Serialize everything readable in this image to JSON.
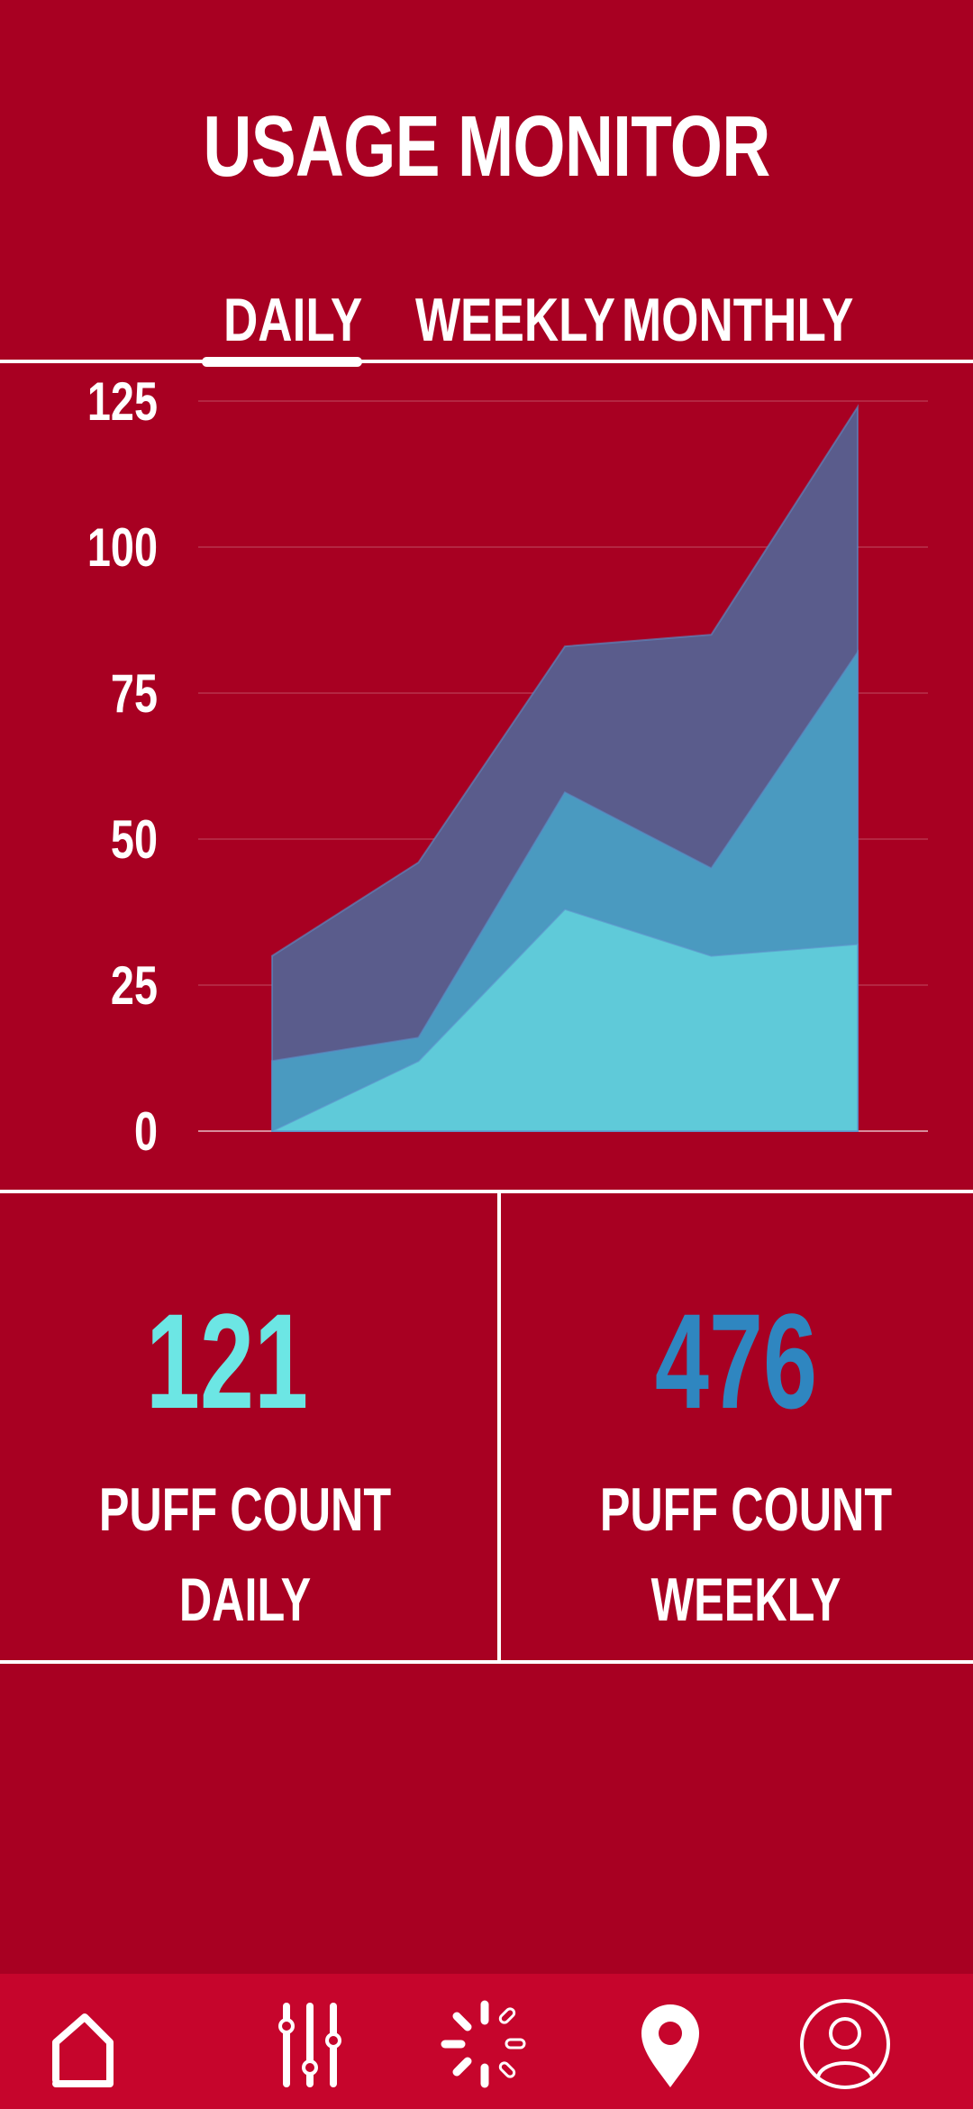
{
  "header": {
    "title": "USAGE MONITOR"
  },
  "tabs": [
    {
      "label": "DAILY",
      "active": true
    },
    {
      "label": "WEEKLY",
      "active": false
    },
    {
      "label": "MONTHLY",
      "active": false
    }
  ],
  "chart_data": {
    "type": "area",
    "stacked": false,
    "x": [
      1,
      2,
      3,
      4,
      5
    ],
    "ylim": [
      0,
      125
    ],
    "yticks": [
      0,
      25,
      50,
      75,
      100,
      125
    ],
    "grid": true,
    "legend": "none",
    "series": [
      {
        "color": "#5A5C8C",
        "values": [
          30,
          46,
          83,
          85,
          124
        ]
      },
      {
        "color": "#4A9AC0",
        "values": [
          12,
          16,
          58,
          45,
          82
        ]
      },
      {
        "color": "#5FCAD9",
        "values": [
          0,
          12,
          38,
          30,
          32
        ]
      }
    ]
  },
  "stats": [
    {
      "value": "121",
      "line1": "PUFF COUNT",
      "line2": "DAILY",
      "color": "#6CE6E4"
    },
    {
      "value": "476",
      "line1": "PUFF COUNT",
      "line2": "WEEKLY",
      "color": "#2F86C0"
    }
  ],
  "nav": [
    {
      "icon": "home-icon"
    },
    {
      "icon": "sliders-icon"
    },
    {
      "icon": "loading-icon"
    },
    {
      "icon": "location-pin-icon"
    },
    {
      "icon": "profile-icon"
    }
  ],
  "colors": {
    "background": "#A80022",
    "nav_background": "#C6052C"
  }
}
